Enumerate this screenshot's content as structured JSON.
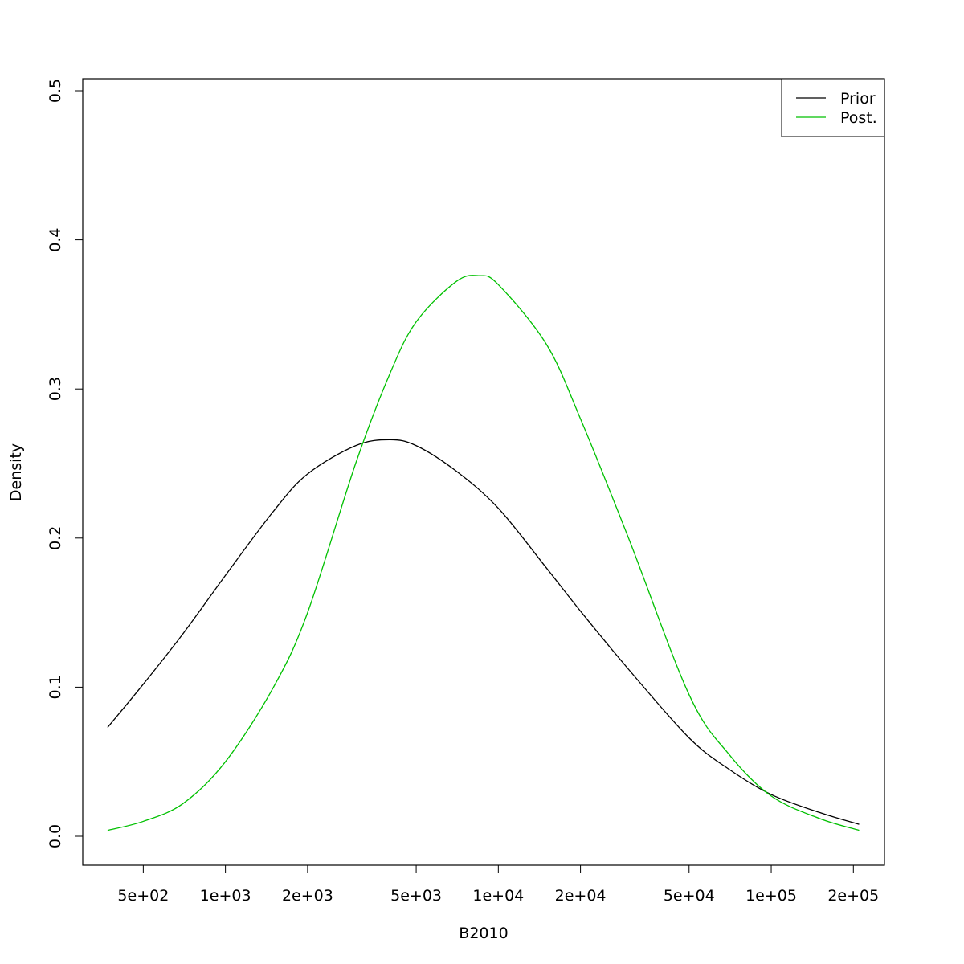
{
  "chart_data": {
    "type": "line",
    "xlabel": "B2010",
    "ylabel": "Density",
    "x_scale": "log",
    "xlim": [
      300,
      260000
    ],
    "ylim": [
      0,
      0.5
    ],
    "x_ticks": [
      500,
      1000,
      2000,
      5000,
      10000,
      20000,
      50000,
      100000,
      200000
    ],
    "x_tick_labels": [
      "5e+02",
      "1e+03",
      "2e+03",
      "5e+03",
      "1e+04",
      "2e+04",
      "5e+04",
      "1e+05",
      "2e+05"
    ],
    "y_ticks": [
      0.0,
      0.1,
      0.2,
      0.3,
      0.4,
      0.5
    ],
    "y_tick_labels": [
      "0.0",
      "0.1",
      "0.2",
      "0.3",
      "0.4",
      "0.5"
    ],
    "grid": false,
    "legend_position": "top-right",
    "legend": [
      "Prior",
      "Post."
    ],
    "series": [
      {
        "name": "Prior",
        "color": "#000000",
        "x": [
          370,
          500,
          700,
          1000,
          1500,
          2000,
          3000,
          4000,
          5000,
          7000,
          10000,
          15000,
          20000,
          30000,
          50000,
          70000,
          100000,
          150000,
          210000
        ],
        "y": [
          0.073,
          0.102,
          0.136,
          0.175,
          0.218,
          0.243,
          0.262,
          0.266,
          0.262,
          0.245,
          0.22,
          0.18,
          0.151,
          0.112,
          0.066,
          0.045,
          0.028,
          0.016,
          0.008
        ]
      },
      {
        "name": "Post.",
        "color": "#00c000",
        "x": [
          370,
          500,
          700,
          1000,
          1500,
          2000,
          3000,
          4000,
          5000,
          7000,
          8500,
          10000,
          15000,
          20000,
          30000,
          50000,
          70000,
          100000,
          150000,
          210000
        ],
        "y": [
          0.004,
          0.01,
          0.022,
          0.05,
          0.1,
          0.15,
          0.25,
          0.31,
          0.345,
          0.372,
          0.376,
          0.37,
          0.33,
          0.28,
          0.2,
          0.095,
          0.055,
          0.027,
          0.012,
          0.004
        ]
      }
    ]
  }
}
